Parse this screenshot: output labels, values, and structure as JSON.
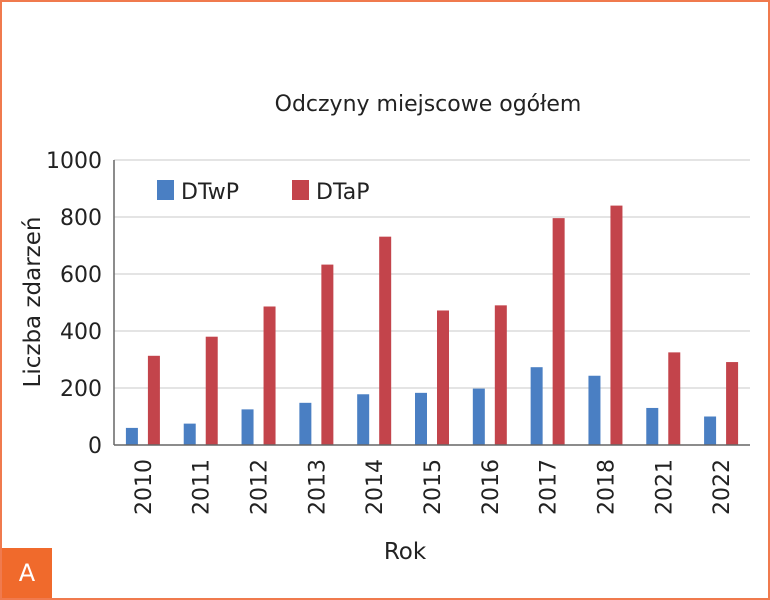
{
  "panel_label": "A",
  "colors": {
    "dtwp": "#4a7fc3",
    "dtap": "#c3444b",
    "grid": "#dcdcdc",
    "axis": "#666666",
    "frame": "#f07a4e",
    "badge": "#f06a2c"
  },
  "chart_data": {
    "type": "bar",
    "title": "Odczyny miejscowe ogółem",
    "xlabel": "Rok",
    "ylabel": "Liczba zdarzeń",
    "ylim": [
      0,
      1000
    ],
    "yticks": [
      "0",
      "200",
      "400",
      "600",
      "800",
      "1000"
    ],
    "grid": true,
    "legend_position": "top-left",
    "categories": [
      "2010",
      "2011",
      "2012",
      "2013",
      "2014",
      "2015",
      "2016",
      "2017",
      "2018",
      "2021",
      "2022"
    ],
    "series": [
      {
        "name": "DTwP",
        "color": "#4a7fc3",
        "values": [
          60,
          75,
          125,
          148,
          178,
          183,
          198,
          273,
          243,
          130,
          100
        ]
      },
      {
        "name": "DTaP",
        "color": "#c3444b",
        "values": [
          313,
          380,
          486,
          633,
          731,
          472,
          490,
          796,
          840,
          325,
          291
        ]
      }
    ]
  }
}
